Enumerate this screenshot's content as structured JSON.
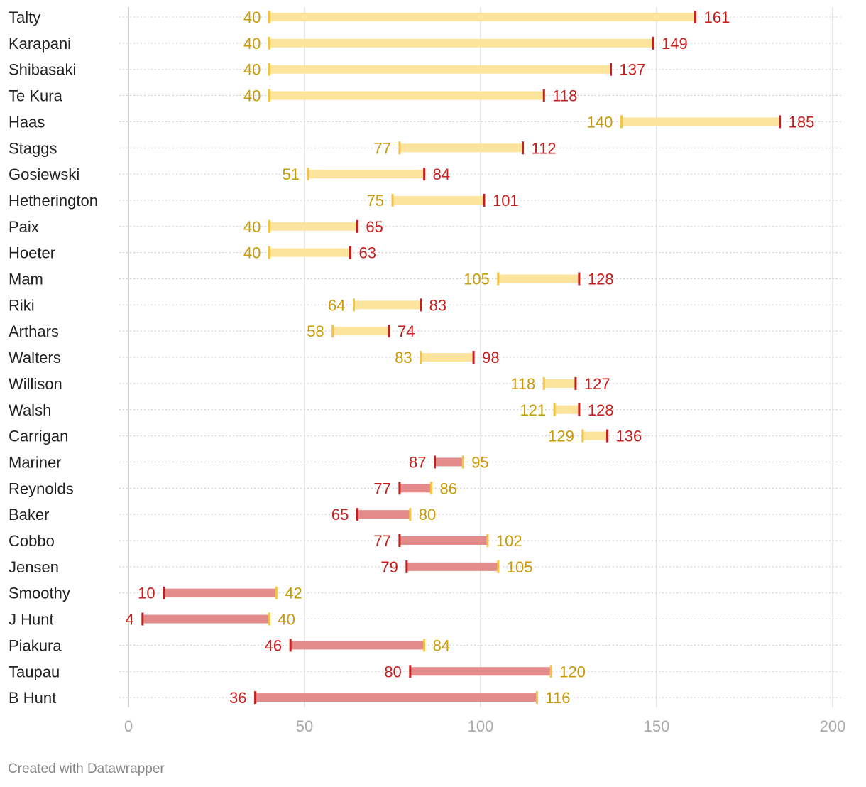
{
  "credit": "Created with Datawrapper",
  "colors": {
    "start_marker": "#f5c242",
    "start_label": "#c99a06",
    "end_marker": "#c71e1d",
    "end_label": "#c71e1d",
    "increase_bar": "#fde49c",
    "decrease_bar": "#e38b8b",
    "gridline": "#e2e2e2",
    "row_line": "#cccccc",
    "tick_label": "#aaaaaa"
  },
  "chart_data": {
    "type": "range-plot",
    "title": "",
    "xlabel": "",
    "ylabel": "",
    "xlim": [
      0,
      200
    ],
    "x_ticks": [
      0,
      50,
      100,
      150,
      200
    ],
    "grid": true,
    "legend": "none",
    "rows": [
      {
        "name": "Talty",
        "start": 40,
        "end": 161
      },
      {
        "name": "Karapani",
        "start": 40,
        "end": 149
      },
      {
        "name": "Shibasaki",
        "start": 40,
        "end": 137
      },
      {
        "name": "Te Kura",
        "start": 40,
        "end": 118
      },
      {
        "name": "Haas",
        "start": 140,
        "end": 185
      },
      {
        "name": "Staggs",
        "start": 77,
        "end": 112
      },
      {
        "name": "Gosiewski",
        "start": 51,
        "end": 84
      },
      {
        "name": "Hetherington",
        "start": 75,
        "end": 101
      },
      {
        "name": "Paix",
        "start": 40,
        "end": 65
      },
      {
        "name": "Hoeter",
        "start": 40,
        "end": 63
      },
      {
        "name": "Mam",
        "start": 105,
        "end": 128
      },
      {
        "name": "Riki",
        "start": 64,
        "end": 83
      },
      {
        "name": "Arthars",
        "start": 58,
        "end": 74
      },
      {
        "name": "Walters",
        "start": 83,
        "end": 98
      },
      {
        "name": "Willison",
        "start": 118,
        "end": 127
      },
      {
        "name": "Walsh",
        "start": 121,
        "end": 128
      },
      {
        "name": "Carrigan",
        "start": 129,
        "end": 136
      },
      {
        "name": "Mariner",
        "start": 95,
        "end": 87
      },
      {
        "name": "Reynolds",
        "start": 86,
        "end": 77
      },
      {
        "name": "Baker",
        "start": 80,
        "end": 65
      },
      {
        "name": "Cobbo",
        "start": 102,
        "end": 77
      },
      {
        "name": "Jensen",
        "start": 105,
        "end": 79
      },
      {
        "name": "Smoothy",
        "start": 42,
        "end": 10
      },
      {
        "name": "J Hunt",
        "start": 40,
        "end": 4
      },
      {
        "name": "Piakura",
        "start": 84,
        "end": 46
      },
      {
        "name": "Taupau",
        "start": 120,
        "end": 80
      },
      {
        "name": "B Hunt",
        "start": 116,
        "end": 36
      }
    ]
  }
}
